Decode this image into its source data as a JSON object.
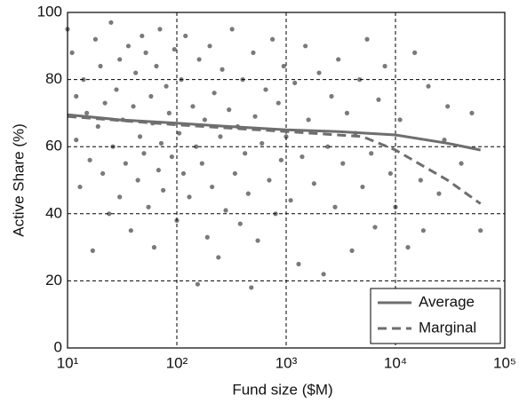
{
  "chart_data": {
    "type": "scatter",
    "x_label": "Fund size ($M)",
    "y_label": "Active Share (%)",
    "xscale": "log",
    "xlim": [
      10,
      100000
    ],
    "ylim": [
      0,
      100
    ],
    "xticks": [
      {
        "value": 10,
        "label": "10¹"
      },
      {
        "value": 100,
        "label": "10²"
      },
      {
        "value": 1000,
        "label": "10³"
      },
      {
        "value": 10000,
        "label": "10⁴"
      },
      {
        "value": 100000,
        "label": "10⁵"
      }
    ],
    "yticks": [
      0,
      20,
      40,
      60,
      80,
      100
    ],
    "grid": true,
    "legend": "lower right",
    "points": {
      "color": "#7a7a7a",
      "x": [
        10,
        11,
        12,
        12,
        13,
        14,
        15,
        16,
        17,
        18,
        19,
        20,
        21,
        22,
        24,
        25,
        26,
        28,
        30,
        30,
        32,
        34,
        36,
        38,
        40,
        42,
        44,
        46,
        48,
        50,
        52,
        55,
        58,
        60,
        62,
        65,
        68,
        70,
        72,
        75,
        80,
        85,
        90,
        95,
        100,
        105,
        110,
        115,
        120,
        130,
        140,
        150,
        155,
        160,
        170,
        180,
        190,
        200,
        210,
        220,
        240,
        250,
        260,
        280,
        300,
        320,
        340,
        360,
        380,
        400,
        420,
        450,
        480,
        500,
        520,
        550,
        600,
        650,
        700,
        750,
        800,
        850,
        900,
        950,
        1000,
        1100,
        1200,
        1300,
        1400,
        1500,
        1600,
        1800,
        2000,
        2200,
        2400,
        2600,
        2800,
        3000,
        3300,
        3600,
        4000,
        4300,
        4700,
        5000,
        5500,
        6000,
        6500,
        7000,
        8000,
        9000,
        10000,
        11000,
        13000,
        15000,
        17000,
        18000,
        20000,
        25000,
        28000,
        30000,
        40000,
        50000,
        60000
      ],
      "y": [
        95,
        88,
        75,
        62,
        48,
        80,
        70,
        56,
        29,
        92,
        66,
        84,
        52,
        73,
        40,
        97,
        60,
        77,
        86,
        45,
        68,
        55,
        90,
        35,
        72,
        82,
        50,
        63,
        93,
        58,
        88,
        42,
        75,
        67,
        30,
        84,
        53,
        95,
        61,
        47,
        78,
        70,
        57,
        89,
        38,
        64,
        80,
        52,
        93,
        45,
        72,
        60,
        19,
        86,
        55,
        68,
        33,
        90,
        48,
        76,
        27,
        63,
        83,
        41,
        71,
        95,
        52,
        66,
        37,
        80,
        58,
        46,
        18,
        88,
        69,
        32,
        61,
        77,
        50,
        92,
        40,
        73,
        56,
        84,
        63,
        44,
        79,
        25,
        57,
        90,
        68,
        49,
        82,
        22,
        60,
        75,
        42,
        86,
        55,
        70,
        29,
        64,
        80,
        48,
        92,
        58,
        36,
        74,
        84,
        52,
        42,
        68,
        30,
        88,
        50,
        35,
        78,
        46,
        62,
        72,
        55,
        70,
        35
      ]
    },
    "series": [
      {
        "name": "Average",
        "color": "#6e6e6e",
        "dashed": false,
        "x": [
          10,
          30,
          100,
          300,
          1000,
          3000,
          10000,
          30000,
          60000
        ],
        "y": [
          69.5,
          68,
          67,
          66,
          65,
          64.5,
          63.5,
          61,
          59
        ]
      },
      {
        "name": "Marginal",
        "color": "#6e6e6e",
        "dashed": true,
        "x": [
          10,
          100,
          1000,
          5000,
          10000,
          30000,
          60000
        ],
        "y": [
          69,
          66.5,
          64.5,
          63,
          59,
          50,
          43
        ]
      }
    ]
  }
}
